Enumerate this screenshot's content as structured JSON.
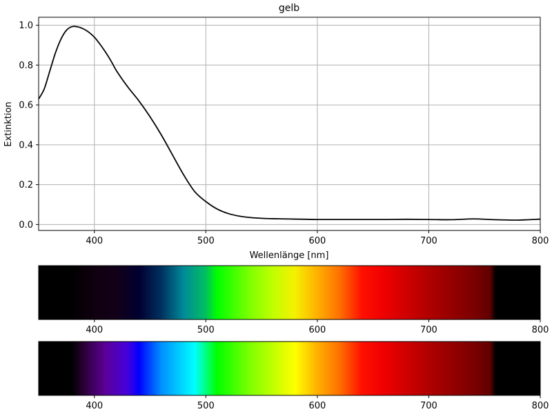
{
  "chart_data": {
    "type": "line",
    "title": "gelb",
    "xlabel": "Wellenlänge [nm]",
    "ylabel": "Extinktion",
    "xlim": [
      350,
      800
    ],
    "ylim": [
      -0.03,
      1.04
    ],
    "grid": true,
    "x_ticks": [
      400,
      500,
      600,
      700,
      800
    ],
    "y_ticks": [
      0.0,
      0.2,
      0.4,
      0.6,
      0.8,
      1.0
    ],
    "x_tick_labels": [
      "400",
      "500",
      "600",
      "700",
      "800"
    ],
    "y_tick_labels": [
      "0.0",
      "0.2",
      "0.4",
      "0.6",
      "0.8",
      "1.0"
    ],
    "line_color": "#000000",
    "series": [
      {
        "x": [
          350,
          355,
          360,
          365,
          370,
          375,
          380,
          385,
          390,
          395,
          400,
          405,
          410,
          415,
          420,
          430,
          440,
          450,
          460,
          470,
          480,
          490,
          500,
          510,
          520,
          530,
          540,
          550,
          560,
          570,
          580,
          590,
          600,
          620,
          640,
          660,
          680,
          700,
          720,
          740,
          760,
          780,
          800
        ],
        "y": [
          0.63,
          0.68,
          0.77,
          0.86,
          0.93,
          0.975,
          0.993,
          0.992,
          0.982,
          0.965,
          0.94,
          0.905,
          0.865,
          0.82,
          0.77,
          0.69,
          0.62,
          0.54,
          0.45,
          0.35,
          0.25,
          0.165,
          0.115,
          0.078,
          0.055,
          0.042,
          0.035,
          0.031,
          0.029,
          0.028,
          0.027,
          0.026,
          0.025,
          0.025,
          0.025,
          0.025,
          0.026,
          0.025,
          0.024,
          0.028,
          0.024,
          0.022,
          0.027
        ]
      }
    ]
  },
  "spectrum_strips": [
    {
      "name": "attenuated-spectrum",
      "x_tick_labels": [
        "400",
        "500",
        "600",
        "700",
        "800"
      ],
      "gradient_stops": [
        {
          "nm": 350,
          "color": "#000000"
        },
        {
          "nm": 380,
          "color": "#000000"
        },
        {
          "nm": 400,
          "color": "#100010"
        },
        {
          "nm": 420,
          "color": "#120018"
        },
        {
          "nm": 440,
          "color": "#000030"
        },
        {
          "nm": 460,
          "color": "#003060"
        },
        {
          "nm": 480,
          "color": "#008a99"
        },
        {
          "nm": 500,
          "color": "#00c060"
        },
        {
          "nm": 510,
          "color": "#00ff00"
        },
        {
          "nm": 540,
          "color": "#80ff00"
        },
        {
          "nm": 560,
          "color": "#c0ff00"
        },
        {
          "nm": 580,
          "color": "#f5f000"
        },
        {
          "nm": 600,
          "color": "#ffb000"
        },
        {
          "nm": 620,
          "color": "#ff7000"
        },
        {
          "nm": 640,
          "color": "#ff1000"
        },
        {
          "nm": 660,
          "color": "#ee0000"
        },
        {
          "nm": 700,
          "color": "#b00000"
        },
        {
          "nm": 740,
          "color": "#7c0000"
        },
        {
          "nm": 755,
          "color": "#600000"
        },
        {
          "nm": 760,
          "color": "#000000"
        },
        {
          "nm": 800,
          "color": "#000000"
        }
      ]
    },
    {
      "name": "full-spectrum",
      "x_tick_labels": [
        "400",
        "500",
        "600",
        "700",
        "800"
      ],
      "gradient_stops": [
        {
          "nm": 350,
          "color": "#000000"
        },
        {
          "nm": 380,
          "color": "#000000"
        },
        {
          "nm": 390,
          "color": "#2a0033"
        },
        {
          "nm": 410,
          "color": "#5c0099"
        },
        {
          "nm": 430,
          "color": "#4400dd"
        },
        {
          "nm": 440,
          "color": "#0000ff"
        },
        {
          "nm": 460,
          "color": "#0090ff"
        },
        {
          "nm": 490,
          "color": "#00ffff"
        },
        {
          "nm": 510,
          "color": "#00ff00"
        },
        {
          "nm": 540,
          "color": "#80ff00"
        },
        {
          "nm": 560,
          "color": "#c0ff00"
        },
        {
          "nm": 580,
          "color": "#ffff00"
        },
        {
          "nm": 600,
          "color": "#ffb000"
        },
        {
          "nm": 620,
          "color": "#ff7000"
        },
        {
          "nm": 640,
          "color": "#ff1000"
        },
        {
          "nm": 660,
          "color": "#ee0000"
        },
        {
          "nm": 700,
          "color": "#b00000"
        },
        {
          "nm": 740,
          "color": "#7c0000"
        },
        {
          "nm": 755,
          "color": "#600000"
        },
        {
          "nm": 760,
          "color": "#000000"
        },
        {
          "nm": 800,
          "color": "#000000"
        }
      ]
    }
  ]
}
